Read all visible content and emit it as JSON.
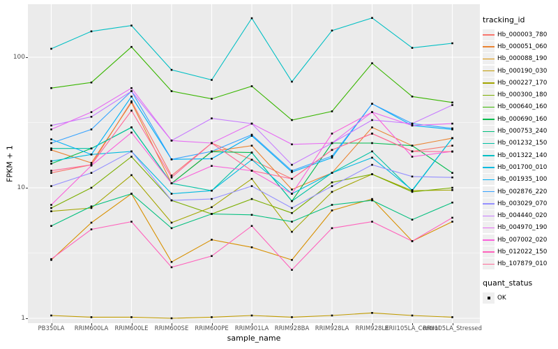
{
  "chart_data": {
    "type": "line",
    "title": "",
    "xlabel": "sample_name",
    "ylabel": "FPKM + 1",
    "y_scale": "log10",
    "y_major_ticks": [
      1,
      10,
      100
    ],
    "y_minor_ticks": [
      3.162,
      31.62
    ],
    "ylim": [
      1,
      230
    ],
    "grid": true,
    "panel_bg": "#EBEBEB",
    "grid_color": "#FFFFFF",
    "point_color": "#000000",
    "point_shape": "square",
    "legend_position": "right",
    "x_categories": [
      "PB350LA",
      "RRIM600LA",
      "RRIM600LE",
      "RRIM600SE",
      "RRIM600PE",
      "RRIM901LA",
      "RRIM928BA",
      "RRIM928LA",
      "RRIM928LE",
      "RRII105LA_Control",
      "RRII105LA_Stressed"
    ],
    "series": [
      {
        "name": "Hb_000003_780",
        "color": "#F8766D",
        "values": [
          13,
          15,
          46,
          12.4,
          22,
          16.4,
          11.7,
          19.5,
          26,
          19,
          21
        ]
      },
      {
        "name": "Hb_000051_060",
        "color": "#EA8331",
        "values": [
          19.5,
          15.5,
          45,
          10.8,
          19,
          21,
          9.7,
          13,
          29,
          21,
          24
        ]
      },
      {
        "name": "Hb_000088_190",
        "color": "#D89000",
        "values": [
          2.8,
          5.4,
          9,
          2.7,
          4,
          3.5,
          2.8,
          6.7,
          8.2,
          3.9,
          5.5
        ]
      },
      {
        "name": "Hb_000190_030",
        "color": "#C09B00",
        "values": [
          1.05,
          1.02,
          1.02,
          1.0,
          1.02,
          1.05,
          1.02,
          1.05,
          1.1,
          1.05,
          1.02
        ]
      },
      {
        "name": "Hb_000227_170",
        "color": "#A3A500",
        "values": [
          6.6,
          7,
          12.5,
          5.4,
          7.1,
          11.7,
          4.6,
          9.3,
          12.7,
          9.5,
          9.6
        ]
      },
      {
        "name": "Hb_000300_180",
        "color": "#7CAE00",
        "values": [
          7,
          10,
          17.3,
          8,
          6.3,
          8.2,
          6.4,
          11,
          12.7,
          9.3,
          10
        ]
      },
      {
        "name": "Hb_000640_160",
        "color": "#39B600",
        "values": [
          58,
          64,
          120,
          55,
          48,
          60,
          33,
          38.5,
          90,
          50,
          45
        ]
      },
      {
        "name": "Hb_000690_160",
        "color": "#00BB4E",
        "values": [
          15.3,
          20,
          29,
          10.8,
          18.9,
          18.6,
          7.9,
          22,
          22,
          21,
          13
        ]
      },
      {
        "name": "Hb_000753_240",
        "color": "#00BF7D",
        "values": [
          5.1,
          7.2,
          9,
          4.9,
          6.3,
          6.2,
          5.5,
          7.4,
          8,
          5.7,
          7.7
        ]
      },
      {
        "name": "Hb_001232_150",
        "color": "#00C1A3",
        "values": [
          20,
          20,
          29,
          10.8,
          9.5,
          18.6,
          7.9,
          13,
          19,
          9.5,
          24
        ]
      },
      {
        "name": "Hb_001322_140",
        "color": "#00BFC4",
        "values": [
          116,
          158,
          175,
          80,
          67,
          199,
          65,
          160,
          200,
          118,
          128
        ]
      },
      {
        "name": "Hb_001700_010",
        "color": "#00BAE0",
        "values": [
          16,
          18,
          19,
          9,
          9.5,
          16.4,
          9,
          13,
          17,
          9.6,
          24
        ]
      },
      {
        "name": "Hb_001935_100",
        "color": "#00B0F6",
        "values": [
          23.5,
          18,
          50,
          16.5,
          16.7,
          25,
          13.2,
          17,
          44,
          30,
          28
        ]
      },
      {
        "name": "Hb_002876_220",
        "color": "#35A2FF",
        "values": [
          22,
          28,
          55,
          16.5,
          19,
          25.5,
          13.5,
          17.5,
          44,
          31,
          28.5
        ]
      },
      {
        "name": "Hb_003029_070",
        "color": "#9590FF",
        "values": [
          10.3,
          13,
          19,
          8,
          8.2,
          10.3,
          7,
          10.3,
          15,
          12.2,
          12
        ]
      },
      {
        "name": "Hb_004440_020",
        "color": "#C77CFF",
        "values": [
          30,
          35,
          55,
          23,
          34,
          31,
          15,
          22,
          33,
          31,
          43
        ]
      },
      {
        "name": "Hb_004970_190",
        "color": "#E76BF3",
        "values": [
          28,
          38,
          58,
          23,
          22,
          31,
          21.5,
          22,
          38,
          30,
          31
        ]
      },
      {
        "name": "Hb_007002_020",
        "color": "#FA62DB",
        "values": [
          7.4,
          14.8,
          26.5,
          10.8,
          14.7,
          13.5,
          9,
          26,
          38,
          17.3,
          19
        ]
      },
      {
        "name": "Hb_012022_150",
        "color": "#FF62BC",
        "values": [
          2.84,
          4.8,
          5.5,
          2.46,
          3,
          5.1,
          2.35,
          4.9,
          5.5,
          3.9,
          5.9
        ]
      },
      {
        "name": "Hb_107879_010",
        "color": "#FF6A98",
        "values": [
          13.5,
          15,
          39,
          12,
          22,
          13.5,
          11.7,
          19.5,
          26,
          19,
          18.9
        ]
      }
    ]
  },
  "legend": {
    "color_title": "tracking_id",
    "shape_title": "quant_status",
    "shape_items": [
      {
        "label": "OK"
      }
    ]
  }
}
